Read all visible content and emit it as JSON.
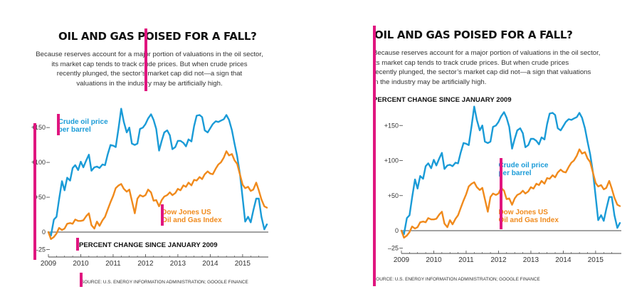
{
  "colors": {
    "crude": "#1a9bd7",
    "dow": "#f08a1c",
    "marker": "#e0157f",
    "axis": "#444444",
    "text": "#222222"
  },
  "title": "OIL AND GAS POISED FOR A FALL?",
  "description_lines": [
    "Because reserves account for a major portion of valuations in the oil sector,",
    "its market cap tends to track crude prices. But when crude prices",
    "recently plunged, the sector’s market cap did not—a sign that",
    "valuations in the industry may be artificially high."
  ],
  "description_lines_right": [
    "Because reserves account for a major portion of valuations in the oil sector,",
    "its market cap tends to track crude prices. But when crude prices",
    "recently plunged, the sector’s market cap did not—a sign that valuations",
    "in the industry may be artificially high."
  ],
  "subtitle": "PERCENT CHANGE SINCE JANUARY 2009",
  "source": "SOURCE: U.S. ENERGY INFORMATION ADMINISTRATION; GOOGLE FINANCE",
  "chart_data": {
    "type": "line",
    "x_unit": "year",
    "xlim": [
      2009.0,
      2015.75
    ],
    "ylim": [
      -25,
      175
    ],
    "x_ticks": [
      "2009",
      "2010",
      "2011",
      "2012",
      "2013",
      "2014",
      "2015"
    ],
    "y_ticks": [
      "–25",
      "0",
      "+50",
      "+100",
      "+150"
    ],
    "y_tick_values": [
      -25,
      0,
      50,
      100,
      150
    ],
    "grid": false,
    "series": [
      {
        "name": "Crude oil price per barrel",
        "label_lines": [
          "Crude oil price",
          "per barrel"
        ],
        "color": "#1a9bd7",
        "points": [
          [
            2009.0,
            0
          ],
          [
            2009.08,
            -5
          ],
          [
            2009.17,
            18
          ],
          [
            2009.25,
            22
          ],
          [
            2009.33,
            47
          ],
          [
            2009.42,
            73
          ],
          [
            2009.5,
            60
          ],
          [
            2009.58,
            78
          ],
          [
            2009.67,
            74
          ],
          [
            2009.75,
            92
          ],
          [
            2009.83,
            96
          ],
          [
            2009.92,
            89
          ],
          [
            2010.0,
            101
          ],
          [
            2010.08,
            93
          ],
          [
            2010.17,
            103
          ],
          [
            2010.25,
            111
          ],
          [
            2010.33,
            88
          ],
          [
            2010.42,
            93
          ],
          [
            2010.5,
            94
          ],
          [
            2010.58,
            92
          ],
          [
            2010.67,
            97
          ],
          [
            2010.75,
            96
          ],
          [
            2010.83,
            111
          ],
          [
            2010.92,
            125
          ],
          [
            2011.0,
            124
          ],
          [
            2011.08,
            122
          ],
          [
            2011.17,
            150
          ],
          [
            2011.25,
            177
          ],
          [
            2011.33,
            158
          ],
          [
            2011.42,
            143
          ],
          [
            2011.5,
            150
          ],
          [
            2011.58,
            127
          ],
          [
            2011.67,
            125
          ],
          [
            2011.75,
            127
          ],
          [
            2011.83,
            148
          ],
          [
            2011.92,
            150
          ],
          [
            2012.0,
            155
          ],
          [
            2012.08,
            163
          ],
          [
            2012.17,
            169
          ],
          [
            2012.25,
            161
          ],
          [
            2012.33,
            148
          ],
          [
            2012.42,
            117
          ],
          [
            2012.5,
            131
          ],
          [
            2012.58,
            143
          ],
          [
            2012.67,
            146
          ],
          [
            2012.75,
            139
          ],
          [
            2012.83,
            119
          ],
          [
            2012.92,
            122
          ],
          [
            2013.0,
            131
          ],
          [
            2013.08,
            131
          ],
          [
            2013.17,
            128
          ],
          [
            2013.25,
            123
          ],
          [
            2013.33,
            133
          ],
          [
            2013.42,
            130
          ],
          [
            2013.5,
            152
          ],
          [
            2013.58,
            167
          ],
          [
            2013.67,
            168
          ],
          [
            2013.75,
            165
          ],
          [
            2013.83,
            146
          ],
          [
            2013.92,
            143
          ],
          [
            2014.0,
            149
          ],
          [
            2014.08,
            155
          ],
          [
            2014.17,
            159
          ],
          [
            2014.25,
            158
          ],
          [
            2014.33,
            160
          ],
          [
            2014.42,
            162
          ],
          [
            2014.5,
            168
          ],
          [
            2014.58,
            161
          ],
          [
            2014.67,
            146
          ],
          [
            2014.75,
            127
          ],
          [
            2014.83,
            109
          ],
          [
            2014.92,
            82
          ],
          [
            2015.0,
            49
          ],
          [
            2015.08,
            15
          ],
          [
            2015.17,
            22
          ],
          [
            2015.25,
            14
          ],
          [
            2015.33,
            31
          ],
          [
            2015.42,
            48
          ],
          [
            2015.5,
            48
          ],
          [
            2015.58,
            22
          ],
          [
            2015.67,
            4
          ],
          [
            2015.75,
            11
          ]
        ]
      },
      {
        "name": "Dow Jones US Oil and Gas Index",
        "label_lines": [
          "Dow Jones US",
          "Oil and Gas Index"
        ],
        "color": "#f08a1c",
        "points": [
          [
            2009.0,
            0
          ],
          [
            2009.08,
            -10
          ],
          [
            2009.17,
            -7
          ],
          [
            2009.25,
            -2
          ],
          [
            2009.33,
            6
          ],
          [
            2009.42,
            3
          ],
          [
            2009.5,
            5
          ],
          [
            2009.58,
            12
          ],
          [
            2009.67,
            13
          ],
          [
            2009.75,
            12
          ],
          [
            2009.83,
            18
          ],
          [
            2009.92,
            16
          ],
          [
            2010.0,
            16
          ],
          [
            2010.08,
            17
          ],
          [
            2010.17,
            23
          ],
          [
            2010.25,
            27
          ],
          [
            2010.33,
            10
          ],
          [
            2010.42,
            5
          ],
          [
            2010.5,
            15
          ],
          [
            2010.58,
            9
          ],
          [
            2010.67,
            17
          ],
          [
            2010.75,
            22
          ],
          [
            2010.83,
            32
          ],
          [
            2010.92,
            43
          ],
          [
            2011.0,
            52
          ],
          [
            2011.08,
            63
          ],
          [
            2011.17,
            67
          ],
          [
            2011.25,
            69
          ],
          [
            2011.33,
            62
          ],
          [
            2011.42,
            58
          ],
          [
            2011.5,
            61
          ],
          [
            2011.58,
            45
          ],
          [
            2011.67,
            27
          ],
          [
            2011.75,
            48
          ],
          [
            2011.83,
            53
          ],
          [
            2011.92,
            51
          ],
          [
            2012.0,
            53
          ],
          [
            2012.08,
            61
          ],
          [
            2012.17,
            57
          ],
          [
            2012.25,
            45
          ],
          [
            2012.33,
            46
          ],
          [
            2012.42,
            37
          ],
          [
            2012.5,
            46
          ],
          [
            2012.58,
            51
          ],
          [
            2012.67,
            53
          ],
          [
            2012.75,
            57
          ],
          [
            2012.83,
            53
          ],
          [
            2012.92,
            56
          ],
          [
            2013.0,
            62
          ],
          [
            2013.08,
            60
          ],
          [
            2013.17,
            67
          ],
          [
            2013.25,
            65
          ],
          [
            2013.33,
            71
          ],
          [
            2013.42,
            67
          ],
          [
            2013.5,
            75
          ],
          [
            2013.58,
            74
          ],
          [
            2013.67,
            79
          ],
          [
            2013.75,
            76
          ],
          [
            2013.83,
            83
          ],
          [
            2013.92,
            87
          ],
          [
            2014.0,
            84
          ],
          [
            2014.08,
            83
          ],
          [
            2014.17,
            91
          ],
          [
            2014.25,
            97
          ],
          [
            2014.33,
            100
          ],
          [
            2014.42,
            107
          ],
          [
            2014.5,
            116
          ],
          [
            2014.58,
            110
          ],
          [
            2014.67,
            112
          ],
          [
            2014.75,
            103
          ],
          [
            2014.83,
            98
          ],
          [
            2014.92,
            82
          ],
          [
            2015.0,
            68
          ],
          [
            2015.08,
            63
          ],
          [
            2015.17,
            65
          ],
          [
            2015.25,
            59
          ],
          [
            2015.33,
            61
          ],
          [
            2015.42,
            71
          ],
          [
            2015.5,
            60
          ],
          [
            2015.58,
            47
          ],
          [
            2015.67,
            37
          ],
          [
            2015.75,
            35
          ]
        ]
      }
    ]
  }
}
